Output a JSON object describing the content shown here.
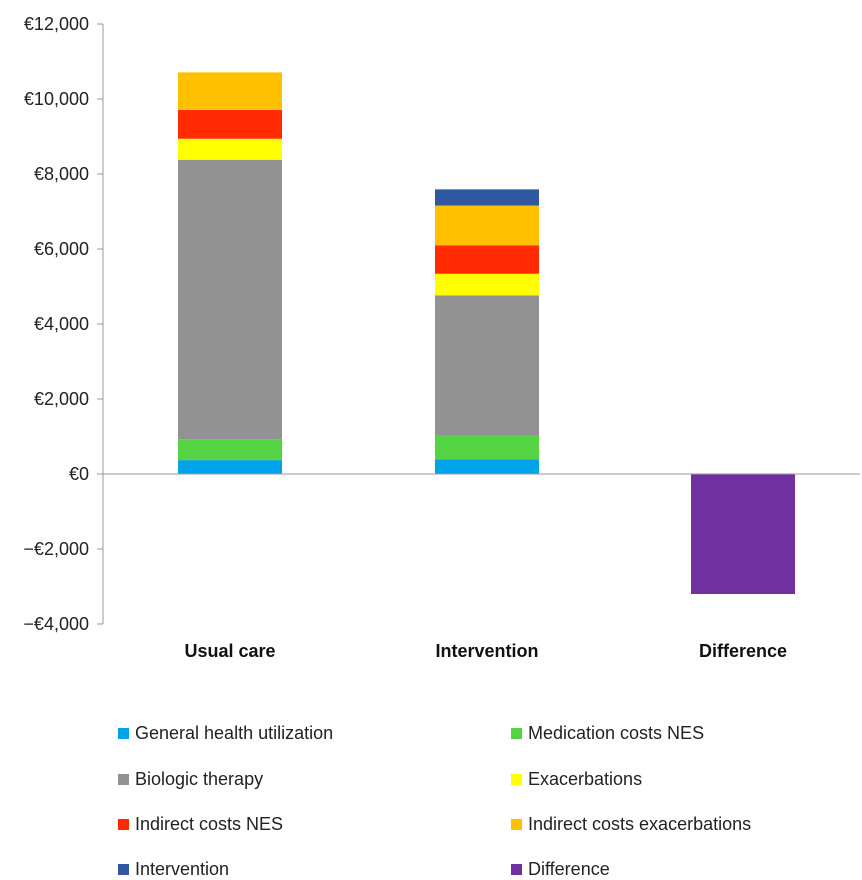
{
  "chart_data": {
    "type": "bar",
    "stacked": true,
    "categories": [
      "Usual care",
      "Intervention",
      "Difference"
    ],
    "ylim": [
      -4000,
      12000
    ],
    "yticks": [
      12000,
      10000,
      8000,
      6000,
      4000,
      2000,
      0,
      -2000,
      -4000
    ],
    "ytick_labels": [
      "€12,000",
      "€10,000",
      "€8,000",
      "€6,000",
      "€4,000",
      "€2,000",
      "€0",
      "−€2,000",
      "−€4,000"
    ],
    "grid": false,
    "legend_position": "bottom",
    "series": [
      {
        "name": "General health utilization",
        "color": "#00a2e8",
        "values": [
          370,
          390,
          0
        ]
      },
      {
        "name": "Medication costs NES",
        "color": "#55d443",
        "values": [
          560,
          650,
          0
        ]
      },
      {
        "name": "Biologic therapy",
        "color": "#929292",
        "values": [
          7450,
          3720,
          0
        ]
      },
      {
        "name": "Exacerbations",
        "color": "#ffff00",
        "values": [
          560,
          580,
          0
        ]
      },
      {
        "name": "Indirect costs NES",
        "color": "#ff2a00",
        "values": [
          770,
          760,
          0
        ]
      },
      {
        "name": "Indirect costs exacerbations",
        "color": "#ffc000",
        "values": [
          1000,
          1060,
          0
        ]
      },
      {
        "name": "Intervention",
        "color": "#2f58a0",
        "values": [
          0,
          430,
          0
        ]
      },
      {
        "name": "Difference",
        "color": "#7030a0",
        "values": [
          0,
          0,
          -3200
        ]
      }
    ]
  }
}
